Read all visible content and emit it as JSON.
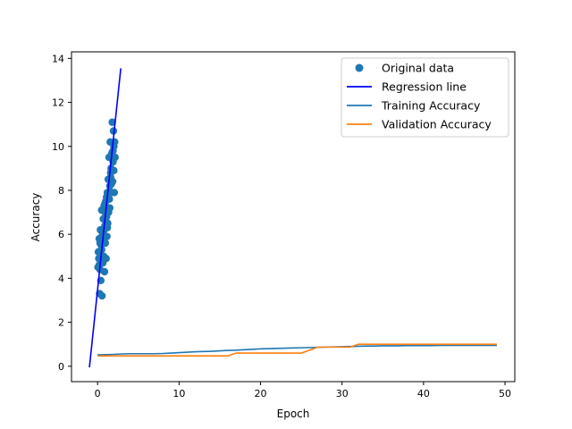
{
  "chart_data": {
    "type": "scatter",
    "title": "",
    "xlabel": "Epoch",
    "ylabel": "Accuracy",
    "xlim": [
      -3.2,
      51.2
    ],
    "ylim": [
      -0.7,
      14.3
    ],
    "xticks": [
      0,
      10,
      20,
      30,
      40,
      50
    ],
    "yticks": [
      0,
      2,
      4,
      6,
      8,
      10,
      12,
      14
    ],
    "xtick_labels": [
      "0",
      "10",
      "20",
      "30",
      "40",
      "50"
    ],
    "ytick_labels": [
      "0",
      "2",
      "4",
      "6",
      "8",
      "10",
      "12",
      "14"
    ],
    "grid": false,
    "legend_position": "top-right",
    "legend": [
      {
        "label": "Original data",
        "marker": "circle",
        "color": "#1f77b4"
      },
      {
        "label": "Regression line",
        "marker": "line",
        "color": "#0000ff"
      },
      {
        "label": "Training Accuracy",
        "marker": "line",
        "color": "#1f77b4"
      },
      {
        "label": "Validation Accuracy",
        "marker": "line",
        "color": "#ff7f0e"
      }
    ],
    "series": [
      {
        "name": "Original data",
        "kind": "scatter",
        "color": "#1f77b4",
        "points": [
          [
            0.05,
            4.5
          ],
          [
            0.1,
            5.2
          ],
          [
            0.15,
            4.9
          ],
          [
            0.2,
            5.8
          ],
          [
            0.25,
            3.3
          ],
          [
            0.3,
            4.4
          ],
          [
            0.35,
            6.2
          ],
          [
            0.4,
            3.9
          ],
          [
            0.45,
            5.5
          ],
          [
            0.5,
            7.1
          ],
          [
            0.55,
            3.2
          ],
          [
            0.6,
            6.0
          ],
          [
            0.65,
            4.7
          ],
          [
            0.7,
            6.7
          ],
          [
            0.75,
            5.0
          ],
          [
            0.8,
            7.3
          ],
          [
            0.85,
            4.3
          ],
          [
            0.9,
            6.4
          ],
          [
            0.95,
            5.6
          ],
          [
            1.0,
            7.5
          ],
          [
            1.05,
            4.9
          ],
          [
            1.1,
            6.8
          ],
          [
            1.15,
            5.9
          ],
          [
            1.2,
            7.9
          ],
          [
            1.25,
            6.5
          ],
          [
            1.3,
            8.5
          ],
          [
            1.35,
            7.0
          ],
          [
            1.4,
            9.5
          ],
          [
            1.45,
            7.6
          ],
          [
            1.5,
            8.2
          ],
          [
            1.55,
            10.2
          ],
          [
            1.6,
            8.6
          ],
          [
            1.65,
            9.0
          ],
          [
            1.7,
            7.9
          ],
          [
            1.75,
            9.7
          ],
          [
            1.8,
            11.1
          ],
          [
            1.85,
            8.4
          ],
          [
            1.9,
            9.3
          ],
          [
            1.95,
            10.7
          ],
          [
            2.0,
            8.9
          ],
          [
            2.05,
            7.9
          ],
          [
            2.1,
            10.2
          ],
          [
            2.15,
            9.5
          ],
          [
            0.3,
            5.6
          ],
          [
            0.5,
            5.3
          ],
          [
            0.7,
            6.1
          ],
          [
            1.0,
            6.9
          ],
          [
            1.2,
            6.3
          ],
          [
            1.5,
            7.2
          ],
          [
            1.7,
            8.3
          ],
          [
            0.2,
            4.6
          ],
          [
            0.4,
            5.1
          ],
          [
            0.6,
            5.7
          ],
          [
            0.9,
            7.4
          ],
          [
            1.1,
            7.7
          ],
          [
            1.3,
            7.2
          ],
          [
            1.6,
            8.8
          ],
          [
            1.9,
            9.8
          ],
          [
            2.0,
            10.0
          ],
          [
            0.8,
            6.2
          ]
        ]
      },
      {
        "name": "Regression line",
        "kind": "line",
        "color": "#0000ff",
        "points": [
          [
            -1.0,
            -0.05
          ],
          [
            2.85,
            13.55
          ]
        ]
      },
      {
        "name": "Training Accuracy",
        "kind": "line",
        "color": "#1f77b4",
        "points": [
          [
            0,
            0.52
          ],
          [
            1,
            0.53
          ],
          [
            2,
            0.54
          ],
          [
            3,
            0.56
          ],
          [
            4,
            0.57
          ],
          [
            5,
            0.57
          ],
          [
            6,
            0.57
          ],
          [
            7,
            0.57
          ],
          [
            8,
            0.58
          ],
          [
            9,
            0.6
          ],
          [
            10,
            0.62
          ],
          [
            11,
            0.64
          ],
          [
            12,
            0.66
          ],
          [
            13,
            0.67
          ],
          [
            14,
            0.68
          ],
          [
            15,
            0.7
          ],
          [
            16,
            0.72
          ],
          [
            17,
            0.73
          ],
          [
            18,
            0.75
          ],
          [
            19,
            0.77
          ],
          [
            20,
            0.79
          ],
          [
            21,
            0.8
          ],
          [
            22,
            0.81
          ],
          [
            23,
            0.82
          ],
          [
            24,
            0.83
          ],
          [
            25,
            0.84
          ],
          [
            26,
            0.85
          ],
          [
            27,
            0.86
          ],
          [
            28,
            0.87
          ],
          [
            29,
            0.88
          ],
          [
            30,
            0.89
          ],
          [
            31,
            0.9
          ],
          [
            32,
            0.91
          ],
          [
            33,
            0.92
          ],
          [
            34,
            0.92
          ],
          [
            35,
            0.93
          ],
          [
            36,
            0.93
          ],
          [
            37,
            0.93
          ],
          [
            38,
            0.94
          ],
          [
            39,
            0.94
          ],
          [
            40,
            0.94
          ],
          [
            41,
            0.94
          ],
          [
            42,
            0.95
          ],
          [
            43,
            0.95
          ],
          [
            44,
            0.95
          ],
          [
            45,
            0.95
          ],
          [
            46,
            0.95
          ],
          [
            47,
            0.95
          ],
          [
            48,
            0.95
          ],
          [
            49,
            0.95
          ]
        ]
      },
      {
        "name": "Validation Accuracy",
        "kind": "line",
        "color": "#ff7f0e",
        "points": [
          [
            0,
            0.47
          ],
          [
            1,
            0.47
          ],
          [
            2,
            0.47
          ],
          [
            3,
            0.47
          ],
          [
            4,
            0.47
          ],
          [
            5,
            0.47
          ],
          [
            6,
            0.47
          ],
          [
            7,
            0.47
          ],
          [
            8,
            0.47
          ],
          [
            9,
            0.47
          ],
          [
            10,
            0.47
          ],
          [
            11,
            0.47
          ],
          [
            12,
            0.47
          ],
          [
            13,
            0.47
          ],
          [
            14,
            0.47
          ],
          [
            15,
            0.47
          ],
          [
            16,
            0.47
          ],
          [
            17,
            0.6
          ],
          [
            18,
            0.6
          ],
          [
            19,
            0.6
          ],
          [
            20,
            0.6
          ],
          [
            21,
            0.6
          ],
          [
            22,
            0.6
          ],
          [
            23,
            0.6
          ],
          [
            24,
            0.6
          ],
          [
            25,
            0.6
          ],
          [
            26,
            0.73
          ],
          [
            27,
            0.87
          ],
          [
            28,
            0.87
          ],
          [
            29,
            0.87
          ],
          [
            30,
            0.87
          ],
          [
            31,
            0.87
          ],
          [
            32,
            1.0
          ],
          [
            33,
            1.0
          ],
          [
            34,
            1.0
          ],
          [
            35,
            1.0
          ],
          [
            36,
            1.0
          ],
          [
            37,
            1.0
          ],
          [
            38,
            1.0
          ],
          [
            39,
            1.0
          ],
          [
            40,
            1.0
          ],
          [
            41,
            1.0
          ],
          [
            42,
            1.0
          ],
          [
            43,
            1.0
          ],
          [
            44,
            1.0
          ],
          [
            45,
            1.0
          ],
          [
            46,
            1.0
          ],
          [
            47,
            1.0
          ],
          [
            48,
            1.0
          ],
          [
            49,
            1.0
          ]
        ]
      }
    ]
  }
}
